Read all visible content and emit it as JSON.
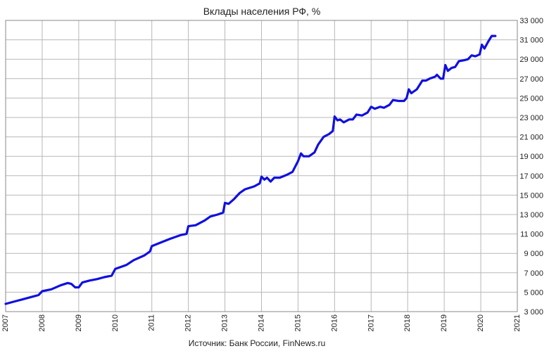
{
  "chart_data": {
    "type": "line",
    "title": "Вклады населения РФ, %",
    "source": "Источник: Банк России, FinNews.ru",
    "xlabel": "",
    "ylabel": "",
    "xlim": [
      2007,
      2021
    ],
    "ylim": [
      3000,
      33000
    ],
    "grid": true,
    "legend": "none",
    "x_ticks": [
      {
        "v": 2007,
        "label": "2007"
      },
      {
        "v": 2008,
        "label": "2008"
      },
      {
        "v": 2009,
        "label": "2009"
      },
      {
        "v": 2010,
        "label": "2010"
      },
      {
        "v": 2011,
        "label": "2011"
      },
      {
        "v": 2012,
        "label": "2012"
      },
      {
        "v": 2013,
        "label": "2013"
      },
      {
        "v": 2014,
        "label": "2014"
      },
      {
        "v": 2015,
        "label": "2015"
      },
      {
        "v": 2016,
        "label": "2016"
      },
      {
        "v": 2017,
        "label": "2017"
      },
      {
        "v": 2018,
        "label": "2018"
      },
      {
        "v": 2019,
        "label": "2019"
      },
      {
        "v": 2020,
        "label": "2020"
      },
      {
        "v": 2021,
        "label": "2021"
      }
    ],
    "y_ticks": [
      {
        "v": 3000,
        "label": "3 000"
      },
      {
        "v": 5000,
        "label": "5 000"
      },
      {
        "v": 7000,
        "label": "7 000"
      },
      {
        "v": 9000,
        "label": "9 000"
      },
      {
        "v": 11000,
        "label": "11 000"
      },
      {
        "v": 13000,
        "label": "13 000"
      },
      {
        "v": 15000,
        "label": "15 000"
      },
      {
        "v": 17000,
        "label": "17 000"
      },
      {
        "v": 19000,
        "label": "19 000"
      },
      {
        "v": 21000,
        "label": "21 000"
      },
      {
        "v": 23000,
        "label": "23 000"
      },
      {
        "v": 25000,
        "label": "25 000"
      },
      {
        "v": 27000,
        "label": "27 000"
      },
      {
        "v": 29000,
        "label": "29 000"
      },
      {
        "v": 31000,
        "label": "31 000"
      },
      {
        "v": 33000,
        "label": "33 000"
      }
    ],
    "series": [
      {
        "color": "#1010e0",
        "points": [
          [
            2007.0,
            3800
          ],
          [
            2007.25,
            4050
          ],
          [
            2007.5,
            4300
          ],
          [
            2007.75,
            4550
          ],
          [
            2007.9,
            4700
          ],
          [
            2008.0,
            5100
          ],
          [
            2008.25,
            5300
          ],
          [
            2008.5,
            5700
          ],
          [
            2008.7,
            5950
          ],
          [
            2008.8,
            5850
          ],
          [
            2008.9,
            5500
          ],
          [
            2009.0,
            5500
          ],
          [
            2009.1,
            6000
          ],
          [
            2009.3,
            6200
          ],
          [
            2009.5,
            6350
          ],
          [
            2009.7,
            6550
          ],
          [
            2009.9,
            6700
          ],
          [
            2010.0,
            7400
          ],
          [
            2010.3,
            7800
          ],
          [
            2010.5,
            8300
          ],
          [
            2010.8,
            8800
          ],
          [
            2010.95,
            9200
          ],
          [
            2011.0,
            9750
          ],
          [
            2011.3,
            10200
          ],
          [
            2011.5,
            10500
          ],
          [
            2011.8,
            10900
          ],
          [
            2011.95,
            11000
          ],
          [
            2012.0,
            11800
          ],
          [
            2012.2,
            11900
          ],
          [
            2012.45,
            12400
          ],
          [
            2012.6,
            12800
          ],
          [
            2012.8,
            13000
          ],
          [
            2012.95,
            13200
          ],
          [
            2013.0,
            14200
          ],
          [
            2013.1,
            14100
          ],
          [
            2013.25,
            14600
          ],
          [
            2013.4,
            15200
          ],
          [
            2013.55,
            15600
          ],
          [
            2013.8,
            15900
          ],
          [
            2013.95,
            16200
          ],
          [
            2014.0,
            16900
          ],
          [
            2014.08,
            16600
          ],
          [
            2014.15,
            16800
          ],
          [
            2014.25,
            16400
          ],
          [
            2014.35,
            16800
          ],
          [
            2014.5,
            16800
          ],
          [
            2014.7,
            17100
          ],
          [
            2014.85,
            17400
          ],
          [
            2015.0,
            18500
          ],
          [
            2015.08,
            19300
          ],
          [
            2015.15,
            19000
          ],
          [
            2015.3,
            19000
          ],
          [
            2015.45,
            19400
          ],
          [
            2015.55,
            20200
          ],
          [
            2015.7,
            21000
          ],
          [
            2015.85,
            21300
          ],
          [
            2015.95,
            21600
          ],
          [
            2016.0,
            23100
          ],
          [
            2016.08,
            22700
          ],
          [
            2016.15,
            22800
          ],
          [
            2016.25,
            22500
          ],
          [
            2016.4,
            22800
          ],
          [
            2016.5,
            22800
          ],
          [
            2016.6,
            23300
          ],
          [
            2016.75,
            23200
          ],
          [
            2016.9,
            23500
          ],
          [
            2017.0,
            24100
          ],
          [
            2017.1,
            23900
          ],
          [
            2017.25,
            24100
          ],
          [
            2017.35,
            24000
          ],
          [
            2017.5,
            24300
          ],
          [
            2017.6,
            24800
          ],
          [
            2017.75,
            24700
          ],
          [
            2017.9,
            24700
          ],
          [
            2017.97,
            25000
          ],
          [
            2018.03,
            25900
          ],
          [
            2018.1,
            25500
          ],
          [
            2018.25,
            25900
          ],
          [
            2018.4,
            26800
          ],
          [
            2018.5,
            26800
          ],
          [
            2018.6,
            27000
          ],
          [
            2018.75,
            27200
          ],
          [
            2018.8,
            27400
          ],
          [
            2018.9,
            27000
          ],
          [
            2018.97,
            27000
          ],
          [
            2019.03,
            28400
          ],
          [
            2019.1,
            27800
          ],
          [
            2019.2,
            28100
          ],
          [
            2019.3,
            28200
          ],
          [
            2019.4,
            28800
          ],
          [
            2019.55,
            28900
          ],
          [
            2019.65,
            29000
          ],
          [
            2019.75,
            29400
          ],
          [
            2019.85,
            29300
          ],
          [
            2019.97,
            29500
          ],
          [
            2020.03,
            30500
          ],
          [
            2020.1,
            30100
          ],
          [
            2020.2,
            30800
          ],
          [
            2020.3,
            31400
          ],
          [
            2020.4,
            31400
          ]
        ]
      }
    ]
  }
}
